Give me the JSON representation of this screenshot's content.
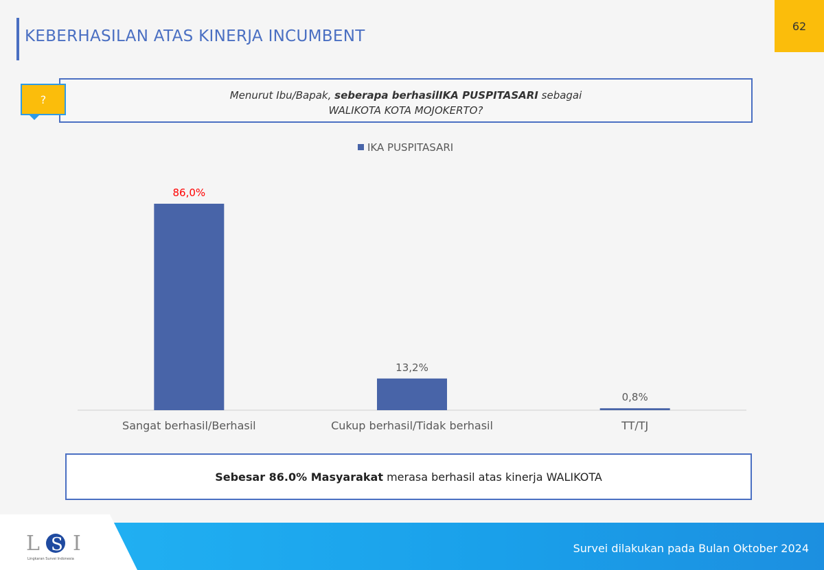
{
  "header": {
    "title": "KEBERHASILAN ATAS KINERJA INCUMBENT",
    "page_number": "62"
  },
  "question": {
    "icon": "?",
    "line1_pre": "Menurut Ibu/Bapak, ",
    "line1_bold": "seberapa berhasilIKA PUSPITASARI",
    "line1_post": " sebagai",
    "line2": "WALIKOTA KOTA MOJOKERTO?"
  },
  "chart_data": {
    "type": "bar",
    "categories": [
      "Sangat berhasil/Berhasil",
      "Cukup berhasil/Tidak berhasil",
      "TT/TJ"
    ],
    "series": [
      {
        "name": "IKA PUSPITASARI",
        "values": [
          86.0,
          13.2,
          0.8
        ],
        "color": "#4864a8"
      }
    ],
    "data_labels": [
      "86,0%",
      "13,2%",
      "0,8%"
    ],
    "label_colors": [
      "#ff0000",
      "#595959",
      "#595959"
    ],
    "legend": "top",
    "ylim": [
      0,
      100
    ],
    "grid": false
  },
  "summary": {
    "bold": "Sebesar 86.0% Masyarakat",
    "rest": " merasa berhasil atas kinerja WALIKOTA"
  },
  "footer": {
    "text": "Survei dilakukan pada Bulan Oktober 2024",
    "logo_text": "LSI",
    "logo_subtitle": "Lingkaran Survei Indonesia"
  }
}
